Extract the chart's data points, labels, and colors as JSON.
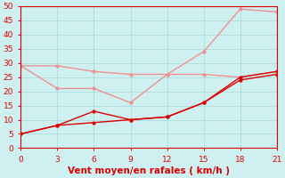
{
  "xlabel": "Vent moyen/en rafales ( km/h )",
  "x": [
    0,
    3,
    6,
    9,
    12,
    15,
    18,
    21
  ],
  "line1_dark": [
    5,
    8,
    13,
    10,
    11,
    16,
    25,
    27
  ],
  "line2_dark": [
    5,
    8,
    9,
    10,
    11,
    16,
    24,
    26
  ],
  "line3_light": [
    29,
    21,
    21,
    16,
    26,
    34,
    49,
    48
  ],
  "line4_light": [
    29,
    29,
    27,
    26,
    26,
    26,
    25,
    27
  ],
  "color_dark": "#dd0000",
  "color_light": "#f09090",
  "bg_color": "#cff0f0",
  "grid_color": "#aadddd",
  "ylim": [
    0,
    50
  ],
  "xlim": [
    0,
    21
  ],
  "yticks": [
    0,
    5,
    10,
    15,
    20,
    25,
    30,
    35,
    40,
    45,
    50
  ],
  "xticks": [
    0,
    3,
    6,
    9,
    12,
    15,
    18,
    21
  ],
  "tick_fontsize": 6.5,
  "xlabel_fontsize": 7.5
}
